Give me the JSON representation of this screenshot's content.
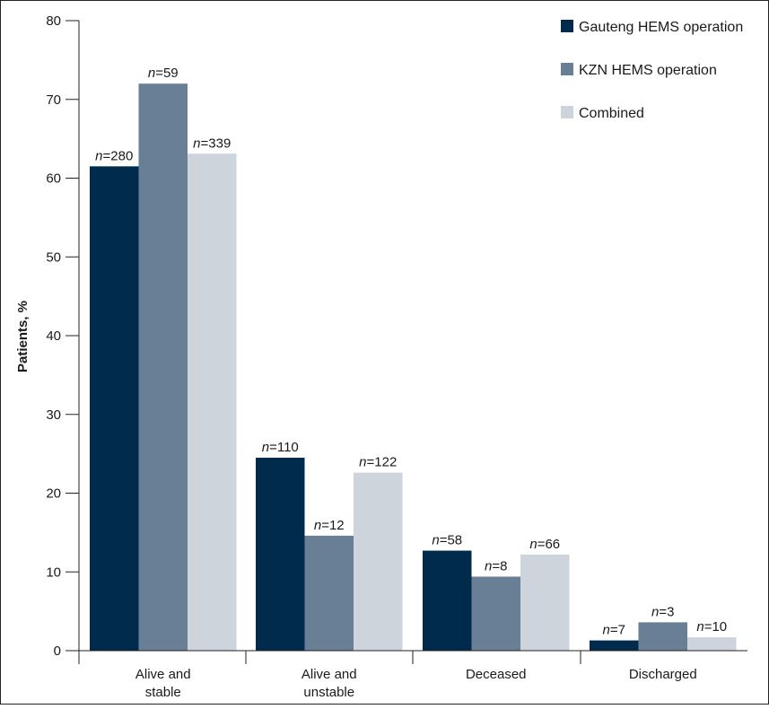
{
  "chart_data": {
    "type": "bar",
    "ylabel": "Patients, %",
    "ylim": [
      0,
      80
    ],
    "yticks": [
      "0",
      "10",
      "20",
      "30",
      "40",
      "50",
      "60",
      "70",
      "80"
    ],
    "grid": false,
    "legend_position": "top-right",
    "categories": [
      [
        "Alive and",
        "stable"
      ],
      [
        "Alive and",
        "unstable"
      ],
      [
        "Deceased"
      ],
      [
        "Discharged"
      ]
    ],
    "series": [
      {
        "name": "Gauteng HEMS operation",
        "color": "#002b4c",
        "values": [
          61.5,
          24.5,
          12.7,
          1.3
        ],
        "labels": [
          "280",
          "110",
          "58",
          "7"
        ]
      },
      {
        "name": "KZN HEMS operation",
        "color": "#697f96",
        "values": [
          72,
          14.6,
          9.4,
          3.6
        ],
        "labels": [
          "59",
          "12",
          "8",
          "3"
        ]
      },
      {
        "name": "Combined",
        "color": "#cdd4dc",
        "values": [
          63.1,
          22.6,
          12.2,
          1.7
        ],
        "labels": [
          "339",
          "122",
          "66",
          "10"
        ]
      }
    ],
    "label_prefix": "n"
  }
}
